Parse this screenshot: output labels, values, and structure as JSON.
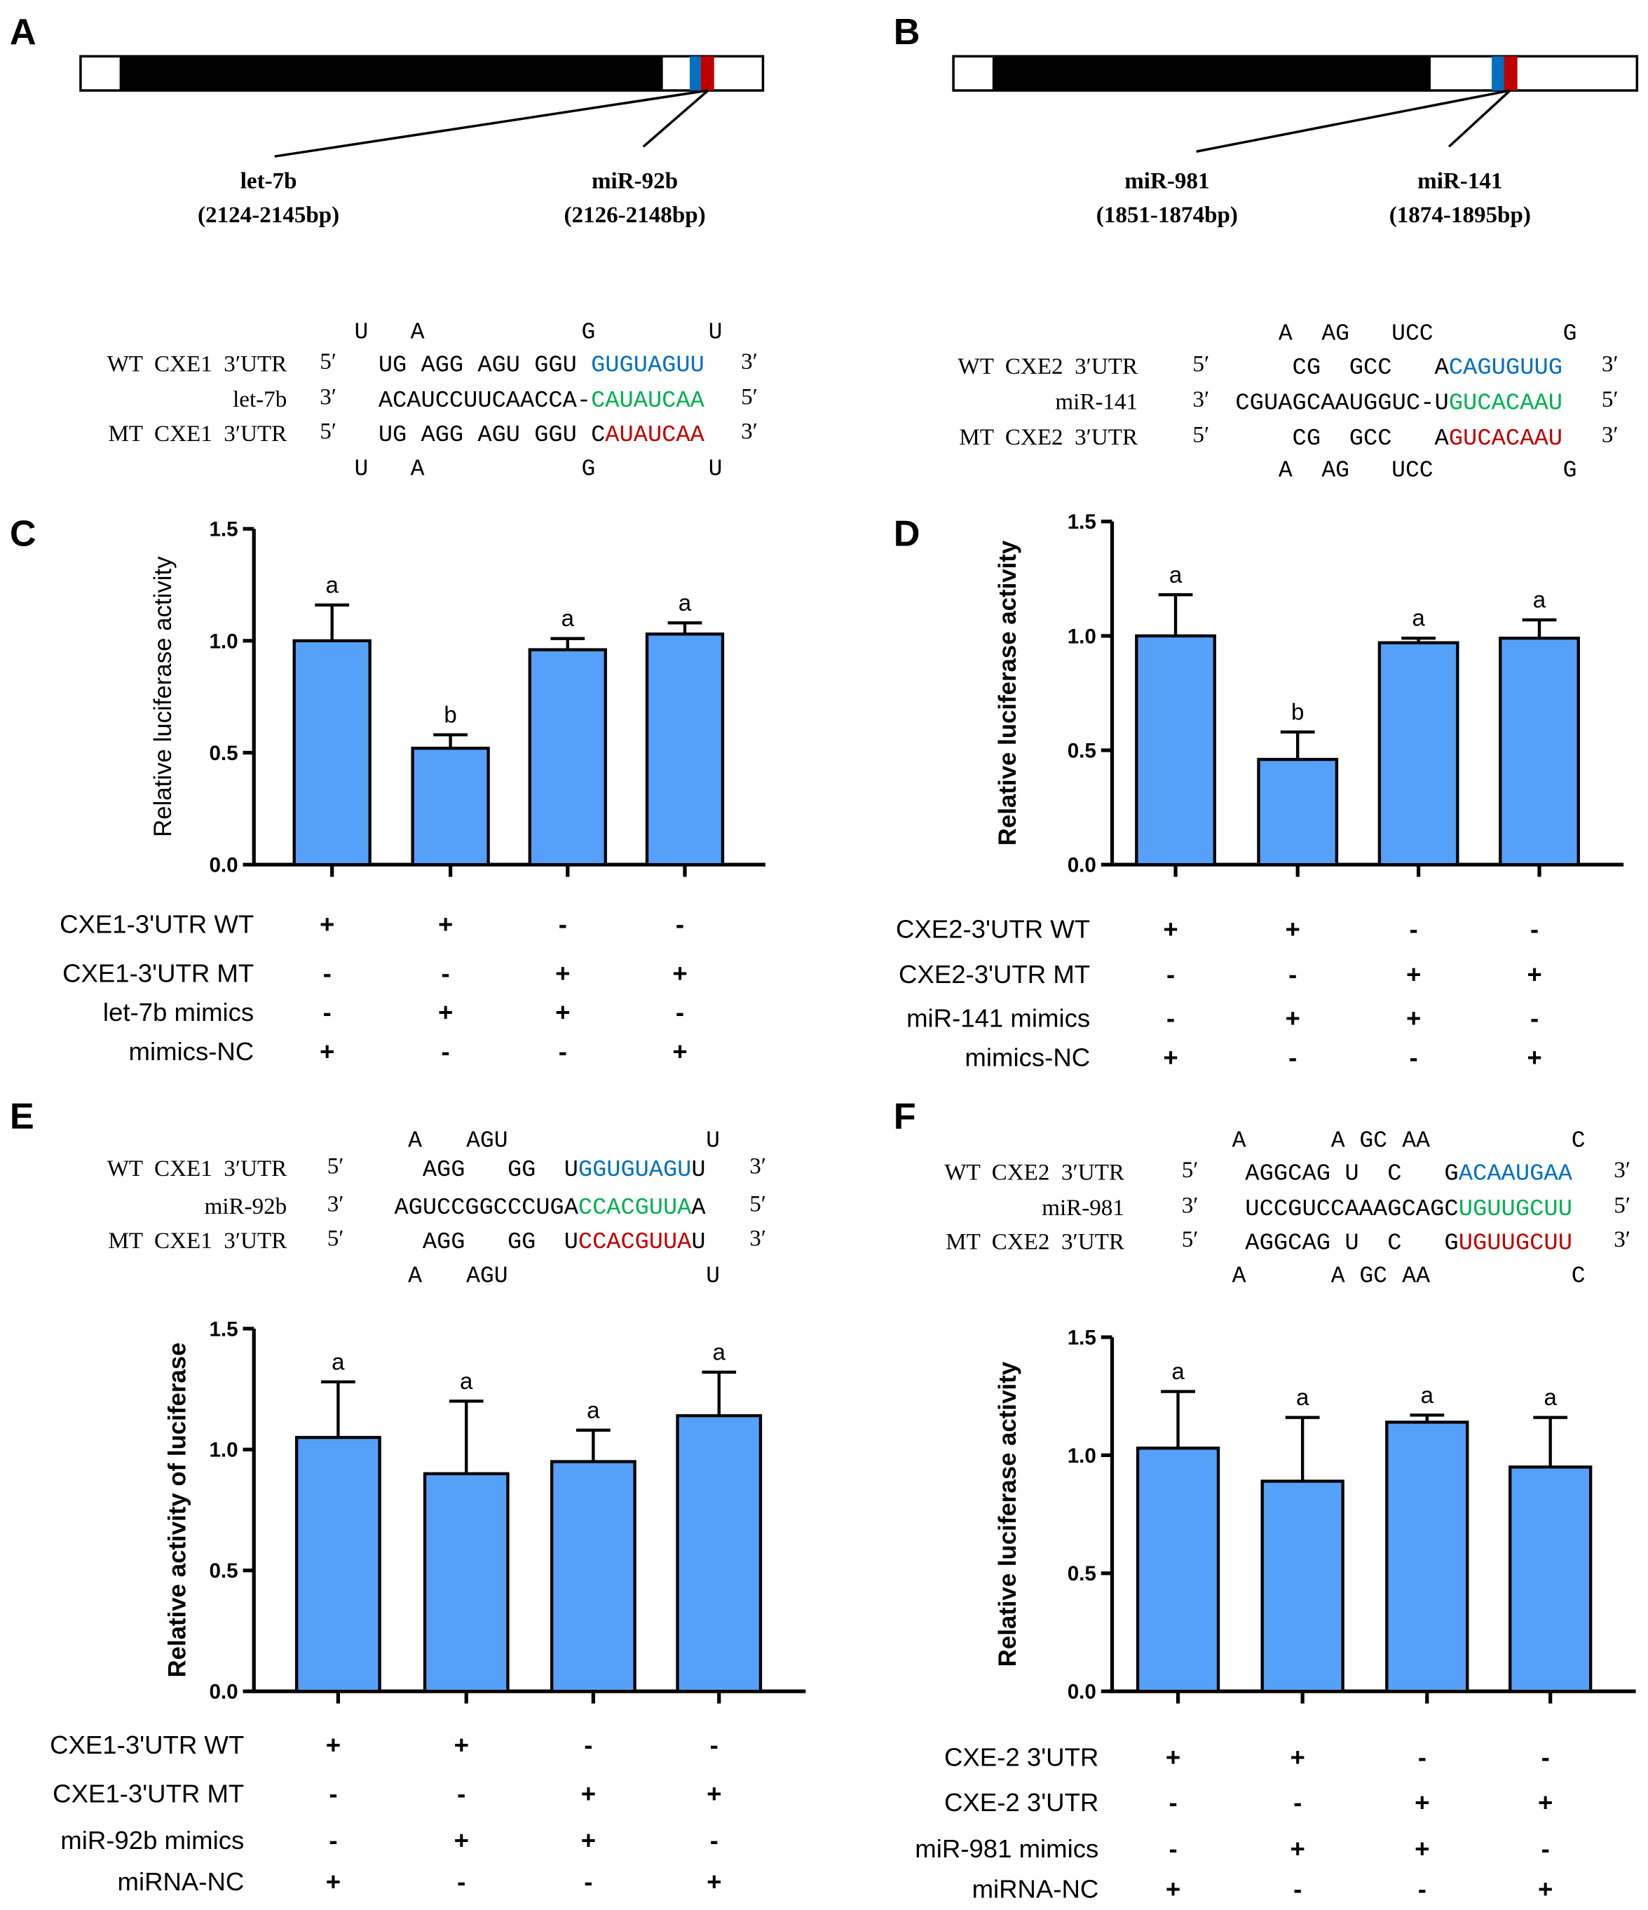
{
  "colors": {
    "bar": "#55A1FA",
    "blue": "#0070C0",
    "red": "#C00000",
    "green": "#00B050",
    "black": "#000000"
  },
  "panels": {
    "A": "A",
    "B": "B",
    "C": "C",
    "D": "D",
    "E": "E",
    "F": "F"
  },
  "maps": [
    {
      "sites": [
        {
          "name": "let-7b",
          "range": "(2124-2145bp)"
        },
        {
          "name": "miR-92b",
          "range": "(2126-2148bp)"
        }
      ]
    },
    {
      "sites": [
        {
          "name": "miR-981",
          "range": "(1851-1874bp)"
        },
        {
          "name": "miR-141",
          "range": "(1874-1895bp)"
        }
      ]
    }
  ],
  "alignments": [
    {
      "loop_top": [
        "U",
        "A",
        "G",
        "U"
      ],
      "loop_bottom": [
        "U",
        "A",
        "G",
        "U"
      ],
      "rows": [
        {
          "label": "WT  CXE1  3′UTR",
          "left": "5′",
          "right": "3′",
          "segments": [
            {
              "t": "UG AGG AGU GGU ",
              "c": "black"
            },
            {
              "t": "GUGUAGUU",
              "c": "blue"
            }
          ]
        },
        {
          "label": "let-7b",
          "left": "3′",
          "right": "5′",
          "segments": [
            {
              "t": "ACAUCCUUCAACCA-",
              "c": "black"
            },
            {
              "t": "CAUAUCAA",
              "c": "green"
            }
          ]
        },
        {
          "label": "MT  CXE1  3′UTR",
          "left": "5′",
          "right": "3′",
          "segments": [
            {
              "t": "UG AGG AGU GGU C",
              "c": "black"
            },
            {
              "t": "AUAUCAA",
              "c": "red"
            }
          ]
        }
      ]
    },
    {
      "loop_top": [
        "A",
        "AG",
        "UCC",
        "G"
      ],
      "loop_bottom": [
        "A",
        "AG",
        "UCC",
        "G"
      ],
      "rows": [
        {
          "label": "WT  CXE2  3′UTR",
          "left": "5′",
          "right": "3′",
          "segments": [
            {
              "t": "    CG  GCC   A",
              "c": "black"
            },
            {
              "t": "CAGUGUUG",
              "c": "blue"
            }
          ]
        },
        {
          "label": "miR-141",
          "left": "3′",
          "right": "5′",
          "segments": [
            {
              "t": "CGUAGCAAUGGUC-U",
              "c": "black"
            },
            {
              "t": "GUCACAAU",
              "c": "green"
            }
          ]
        },
        {
          "label": "MT  CXE2  3′UTR",
          "left": "5′",
          "right": "3′",
          "segments": [
            {
              "t": "    CG  GCC   A",
              "c": "black"
            },
            {
              "t": "GUCACAAU",
              "c": "red"
            }
          ]
        }
      ]
    },
    {
      "loop_top": [
        "A",
        "AGU",
        "U"
      ],
      "loop_bottom": [
        "A",
        "AGU",
        "U"
      ],
      "rows": [
        {
          "label": "WT  CXE1  3′UTR",
          "left": "5′",
          "right": "3′",
          "segments": [
            {
              "t": "  AGG   GG  U",
              "c": "black"
            },
            {
              "t": "GGUGUAGU",
              "c": "blue"
            },
            {
              "t": "U",
              "c": "black"
            }
          ]
        },
        {
          "label": "miR-92b",
          "left": "3′",
          "right": "5′",
          "segments": [
            {
              "t": "AGUCCGGCCCUGA",
              "c": "black"
            },
            {
              "t": "CCACGUUA",
              "c": "green"
            },
            {
              "t": "A",
              "c": "black"
            }
          ]
        },
        {
          "label": "MT  CXE1  3′UTR",
          "left": "5′",
          "right": "3′",
          "segments": [
            {
              "t": "  AGG   GG  U",
              "c": "black"
            },
            {
              "t": "CCACGUUA",
              "c": "red"
            },
            {
              "t": "U",
              "c": "black"
            }
          ]
        }
      ]
    },
    {
      "loop_top": [
        "A",
        "A",
        "GC",
        "AA",
        "C"
      ],
      "loop_bottom": [
        "A",
        "A",
        "GC",
        "AA",
        "C"
      ],
      "rows": [
        {
          "label": "WT  CXE2  3′UTR",
          "left": "5′",
          "right": "3′",
          "segments": [
            {
              "t": "AGGCAG U  C   G",
              "c": "black"
            },
            {
              "t": "ACAAUGAA",
              "c": "blue"
            }
          ]
        },
        {
          "label": "miR-981",
          "left": "3′",
          "right": "5′",
          "segments": [
            {
              "t": "UCCGUCCAAAGCAGC",
              "c": "black"
            },
            {
              "t": "UGUUGCUU",
              "c": "green"
            }
          ]
        },
        {
          "label": "MT  CXE2  3′UTR",
          "left": "5′",
          "right": "3′",
          "segments": [
            {
              "t": "AGGCAG U  C   G",
              "c": "black"
            },
            {
              "t": "UGUUGCUU",
              "c": "red"
            }
          ]
        }
      ]
    }
  ],
  "chart_data": [
    {
      "type": "bar",
      "panel": "C",
      "ylabel": "Relative luciferase activity",
      "ylim": [
        0,
        1.5
      ],
      "yticks": [
        "0.0",
        "0.5",
        "1.0",
        "1.5"
      ],
      "values": [
        1.0,
        0.52,
        0.96,
        1.03
      ],
      "errors": [
        0.16,
        0.06,
        0.05,
        0.05
      ],
      "letters": [
        "a",
        "b",
        "a",
        "a"
      ],
      "treatments": [
        {
          "label": "CXE1-3'UTR WT",
          "marks": [
            "+",
            "+",
            "-",
            "-"
          ]
        },
        {
          "label": "CXE1-3'UTR MT",
          "marks": [
            "-",
            "-",
            "+",
            "+"
          ]
        },
        {
          "label": "let-7b mimics",
          "marks": [
            "-",
            "+",
            "+",
            "-"
          ]
        },
        {
          "label": "mimics-NC",
          "marks": [
            "+",
            "-",
            "-",
            "+"
          ]
        }
      ]
    },
    {
      "type": "bar",
      "panel": "D",
      "ylabel": "Relative luciferase activity",
      "ylim": [
        0,
        1.5
      ],
      "yticks": [
        "0.0",
        "0.5",
        "1.0",
        "1.5"
      ],
      "values": [
        1.0,
        0.46,
        0.97,
        0.99
      ],
      "errors": [
        0.18,
        0.12,
        0.02,
        0.08
      ],
      "letters": [
        "a",
        "b",
        "a",
        "a"
      ],
      "treatments": [
        {
          "label": "CXE2-3'UTR WT",
          "marks": [
            "+",
            "+",
            "-",
            "-"
          ]
        },
        {
          "label": "CXE2-3'UTR MT",
          "marks": [
            "-",
            "-",
            "+",
            "+"
          ]
        },
        {
          "label": "miR-141 mimics",
          "marks": [
            "-",
            "+",
            "+",
            "-"
          ]
        },
        {
          "label": "mimics-NC",
          "marks": [
            "+",
            "-",
            "-",
            "+"
          ]
        }
      ]
    },
    {
      "type": "bar",
      "panel": "E",
      "ylabel": "Relative activity of luciferase",
      "ylim": [
        0,
        1.5
      ],
      "yticks": [
        "0.0",
        "0.5",
        "1.0",
        "1.5"
      ],
      "values": [
        1.05,
        0.9,
        0.95,
        1.14
      ],
      "errors": [
        0.23,
        0.3,
        0.13,
        0.18
      ],
      "letters": [
        "a",
        "a",
        "a",
        "a"
      ],
      "treatments": [
        {
          "label": "CXE1-3'UTR WT",
          "marks": [
            "+",
            "+",
            "-",
            "-"
          ]
        },
        {
          "label": "CXE1-3'UTR MT",
          "marks": [
            "-",
            "-",
            "+",
            "+"
          ]
        },
        {
          "label": "miR-92b mimics",
          "marks": [
            "-",
            "+",
            "+",
            "-"
          ]
        },
        {
          "label": "miRNA-NC",
          "marks": [
            "+",
            "-",
            "-",
            "+"
          ]
        }
      ]
    },
    {
      "type": "bar",
      "panel": "F",
      "ylabel": "Relative luciferase activity",
      "ylim": [
        0,
        1.5
      ],
      "yticks": [
        "0.0",
        "0.5",
        "1.0",
        "1.5"
      ],
      "values": [
        1.03,
        0.89,
        1.14,
        0.95
      ],
      "errors": [
        0.24,
        0.27,
        0.03,
        0.21
      ],
      "letters": [
        "a",
        "a",
        "a",
        "a"
      ],
      "treatments": [
        {
          "label": "CXE-2 3'UTR",
          "marks": [
            "+",
            "+",
            "-",
            "-"
          ]
        },
        {
          "label": "CXE-2 3'UTR",
          "marks": [
            "-",
            "-",
            "+",
            "+"
          ]
        },
        {
          "label": "miR-981 mimics",
          "marks": [
            "-",
            "+",
            "+",
            "-"
          ]
        },
        {
          "label": "miRNA-NC",
          "marks": [
            "+",
            "-",
            "-",
            "+"
          ]
        }
      ]
    }
  ]
}
